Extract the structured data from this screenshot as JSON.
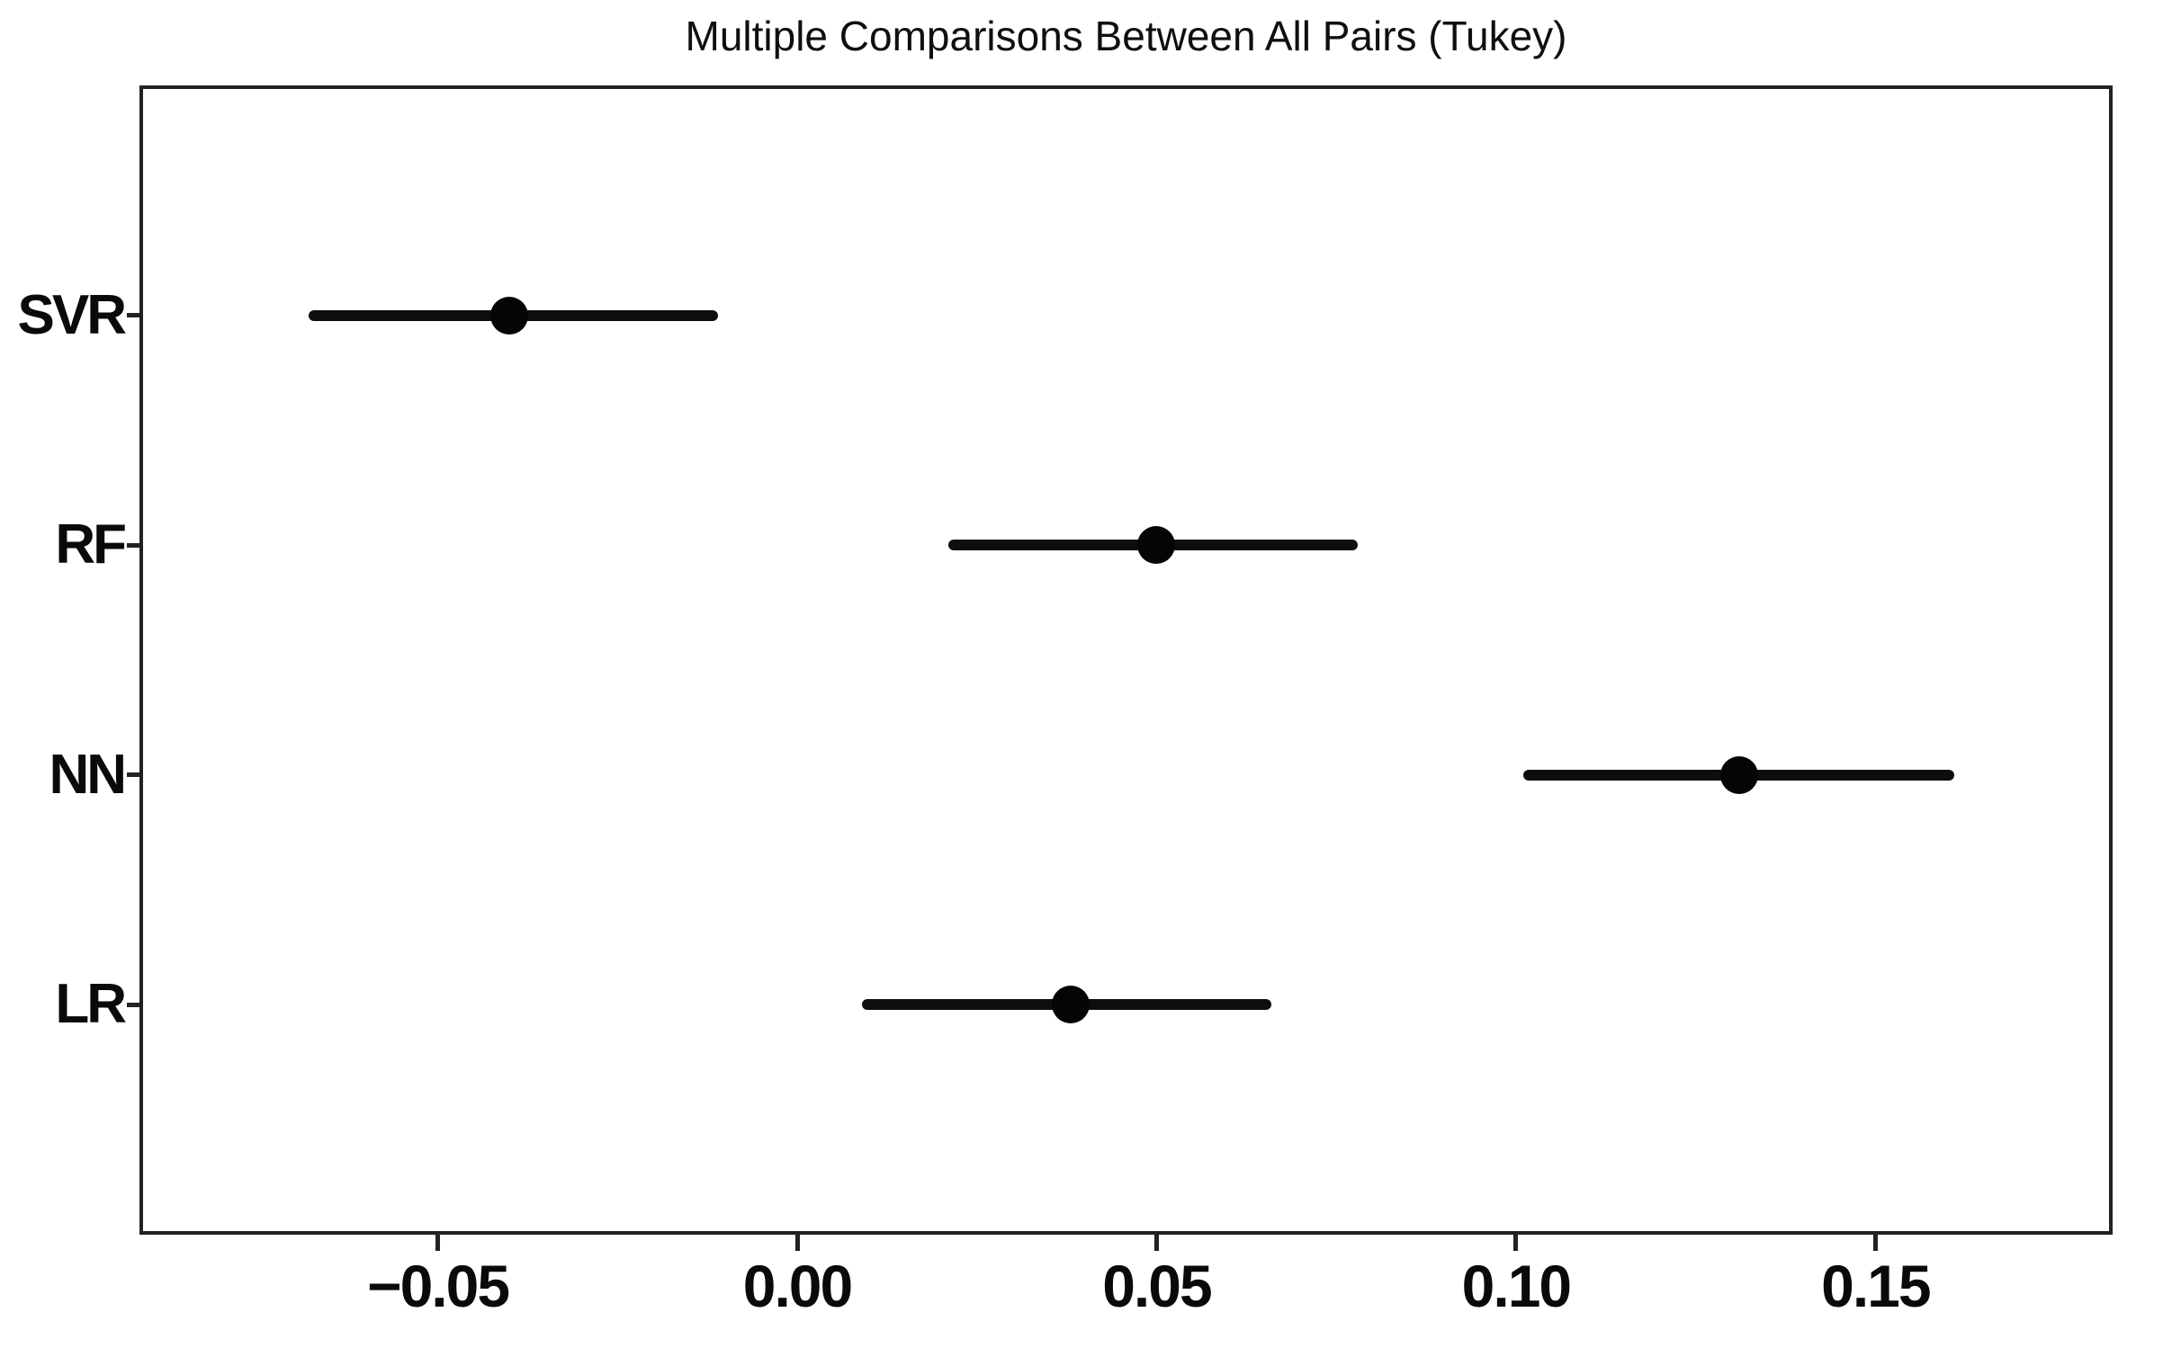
{
  "figure": {
    "background": "#ffffff",
    "spine_color": "#222222",
    "marker_color": "#050505",
    "line_color": "#0e0e0e",
    "text_color": "#0a0a0a"
  },
  "chart_data": {
    "type": "scatter",
    "subtype": "horizontal-errorbar-interval-plot",
    "title": "Multiple Comparisons Between All Pairs (Tukey)",
    "xlabel": "",
    "ylabel": "",
    "grid": false,
    "legend": false,
    "marker": "filled-circle",
    "orientation": "horizontal",
    "categories": [
      "SVR",
      "RF",
      "NN",
      "LR"
    ],
    "points": [
      {
        "label": "SVR",
        "mean": -0.04,
        "ci_low": -0.068,
        "ci_high": -0.011
      },
      {
        "label": "RF",
        "mean": 0.05,
        "ci_low": 0.021,
        "ci_high": 0.078
      },
      {
        "label": "NN",
        "mean": 0.131,
        "ci_low": 0.101,
        "ci_high": 0.161
      },
      {
        "label": "LR",
        "mean": 0.038,
        "ci_low": 0.009,
        "ci_high": 0.066
      }
    ],
    "x_ticks": [
      -0.05,
      0.0,
      0.05,
      0.1,
      0.15
    ],
    "x_tick_labels": [
      "−0.05",
      "0.00",
      "0.05",
      "0.10",
      "0.15"
    ],
    "xlim": [
      -0.0915,
      0.183
    ],
    "row_fractions": [
      0.2,
      0.4,
      0.6,
      0.8
    ]
  }
}
